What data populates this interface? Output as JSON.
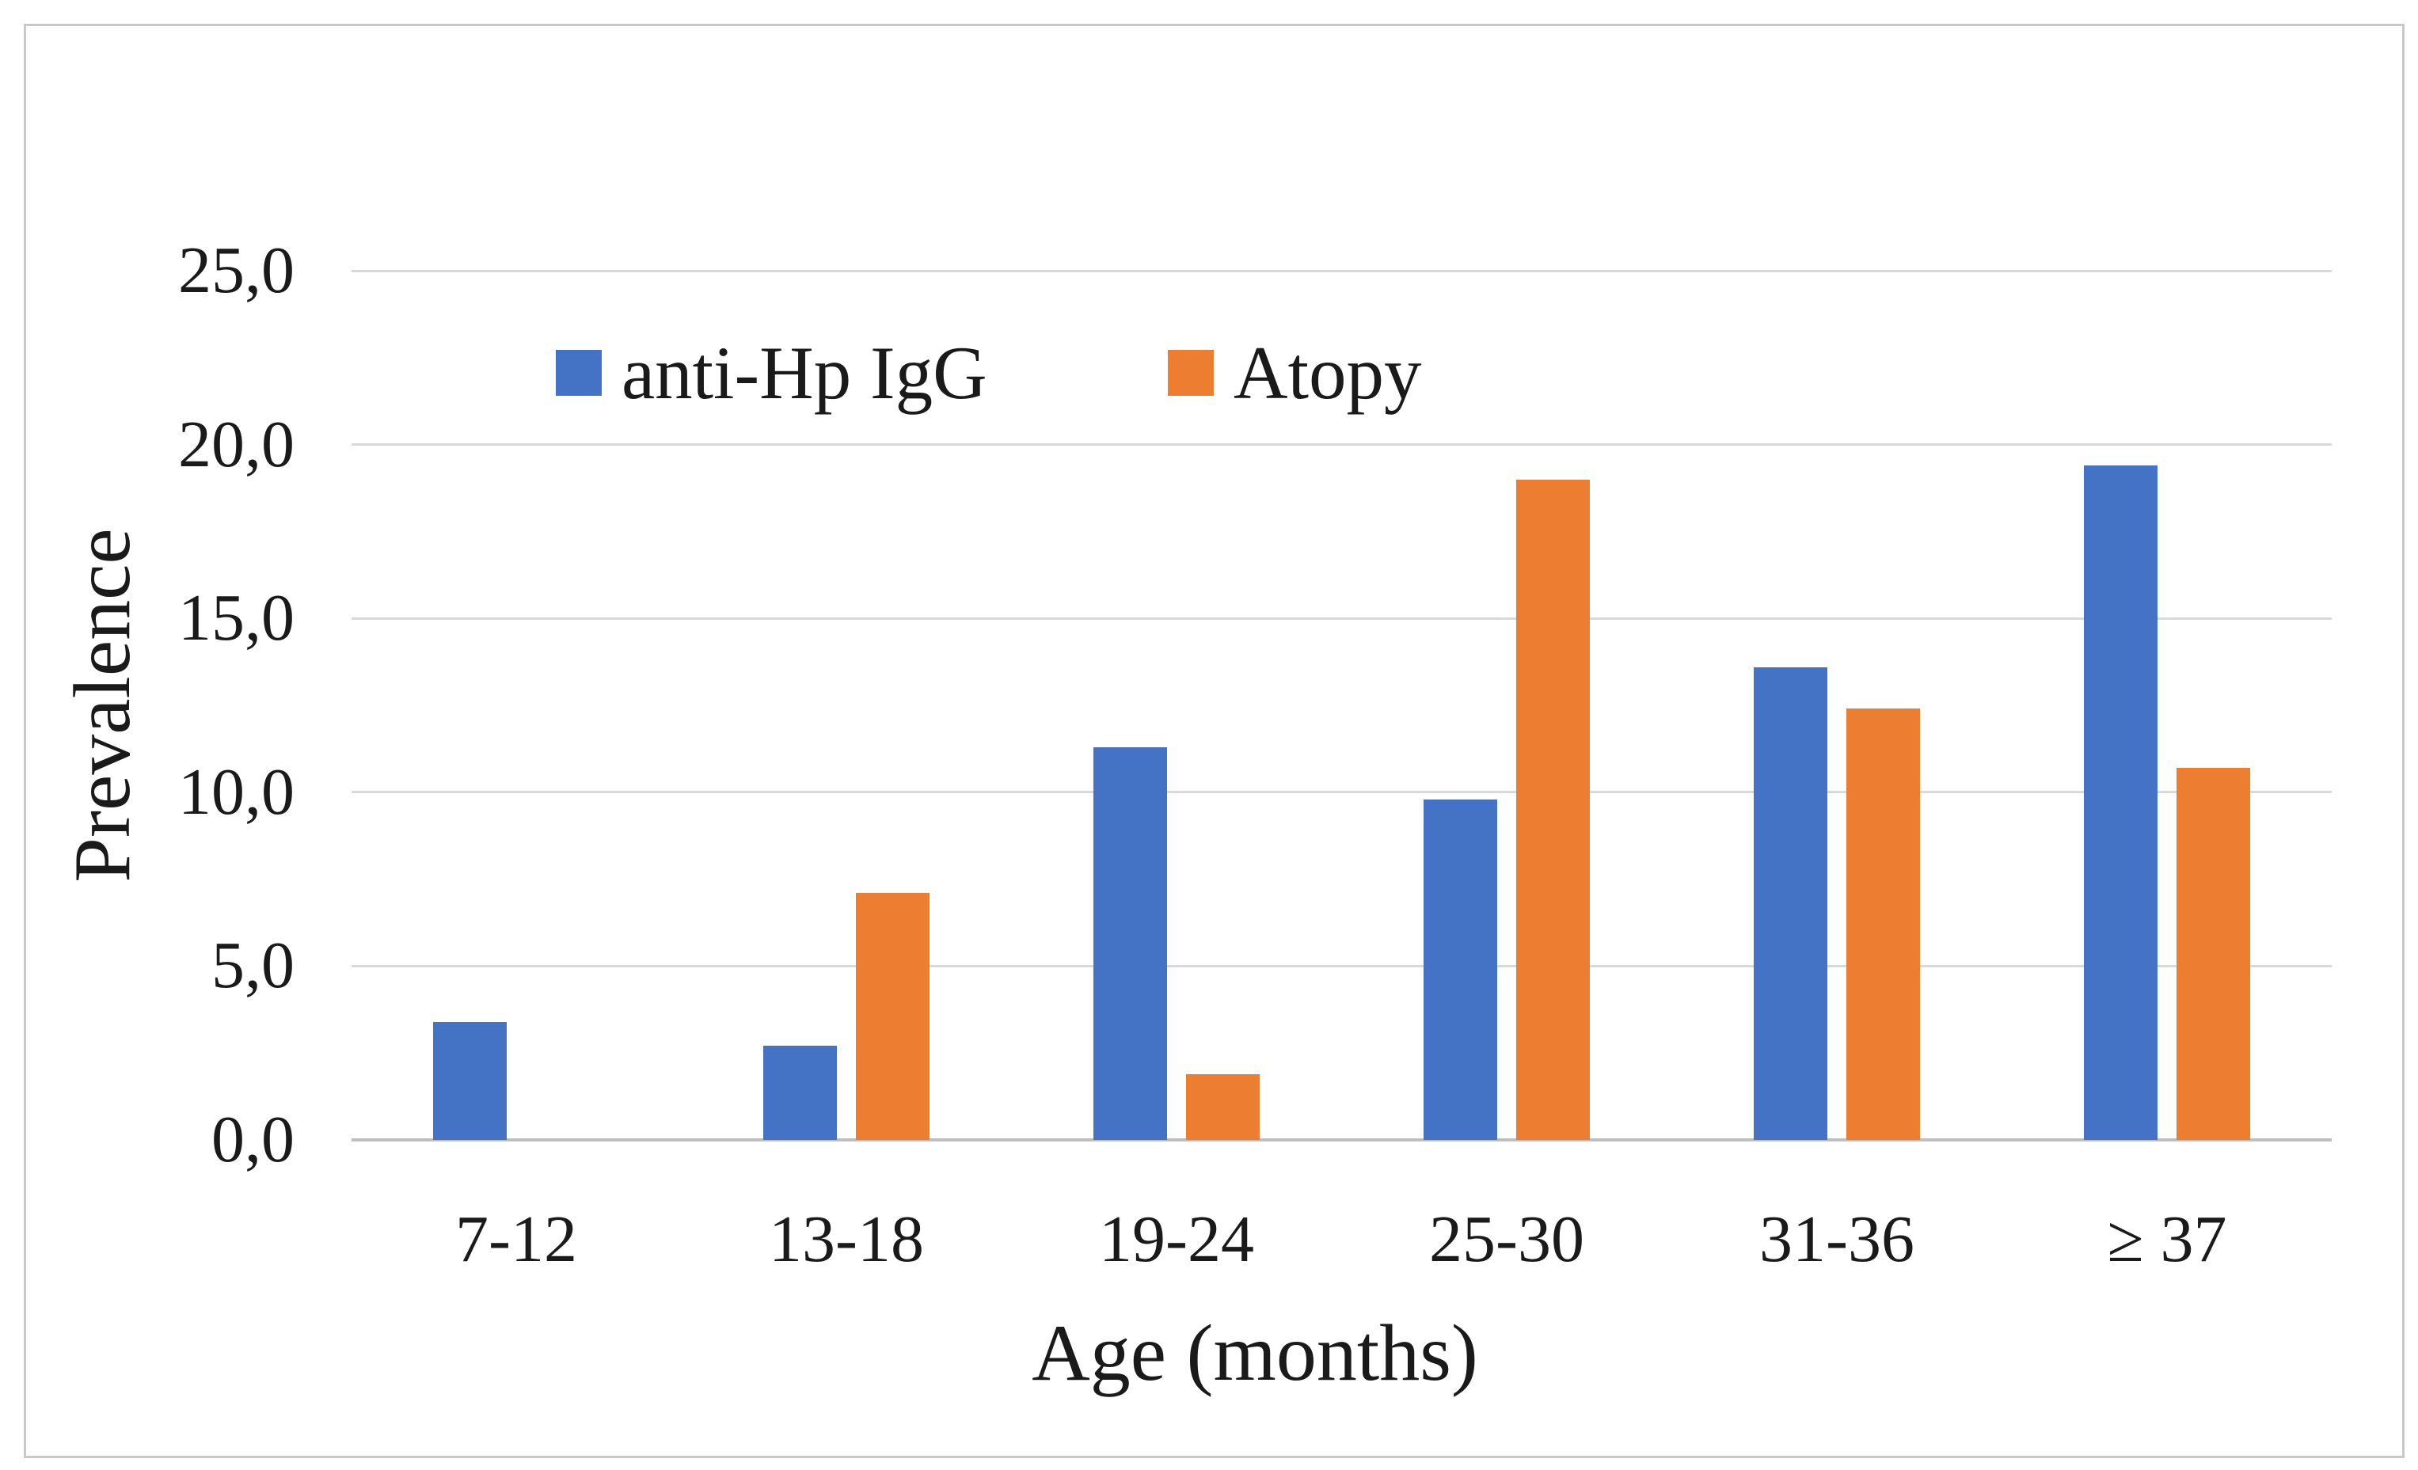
{
  "figure": {
    "background": "#ffffff",
    "border_color": "#c9c9c9"
  },
  "legend": {
    "position": "top-inside",
    "items": [
      {
        "label": "anti-Hp IgG",
        "color": "#4472C4"
      },
      {
        "label": "Atopy",
        "color": "#ED7D31"
      }
    ]
  },
  "chart_data": {
    "type": "bar",
    "title": "",
    "categories": [
      "7-12",
      "13-18",
      "19-24",
      "25-30",
      "31-36",
      "≥ 37"
    ],
    "series": [
      {
        "name": "anti-Hp IgG",
        "color": "#4472C4",
        "values": [
          3.4,
          2.7,
          11.3,
          9.8,
          13.6,
          19.4
        ]
      },
      {
        "name": "Atopy",
        "color": "#ED7D31",
        "values": [
          0,
          7.1,
          1.9,
          19.0,
          12.4,
          10.7
        ]
      }
    ],
    "xlabel": "Age (months)",
    "ylabel": "Prevalence",
    "ylim": [
      0,
      25
    ],
    "y_ticks": [
      0,
      5,
      10,
      15,
      20,
      25
    ],
    "y_tick_labels": [
      "0,0",
      "5,0",
      "10,0",
      "15,0",
      "20,0",
      "25,0"
    ],
    "grid": true,
    "gridline_color": "#d9d9d9",
    "axis_line_color": "#bfbfbf",
    "text_color": "#1a1a1a",
    "decimal_separator": ","
  }
}
